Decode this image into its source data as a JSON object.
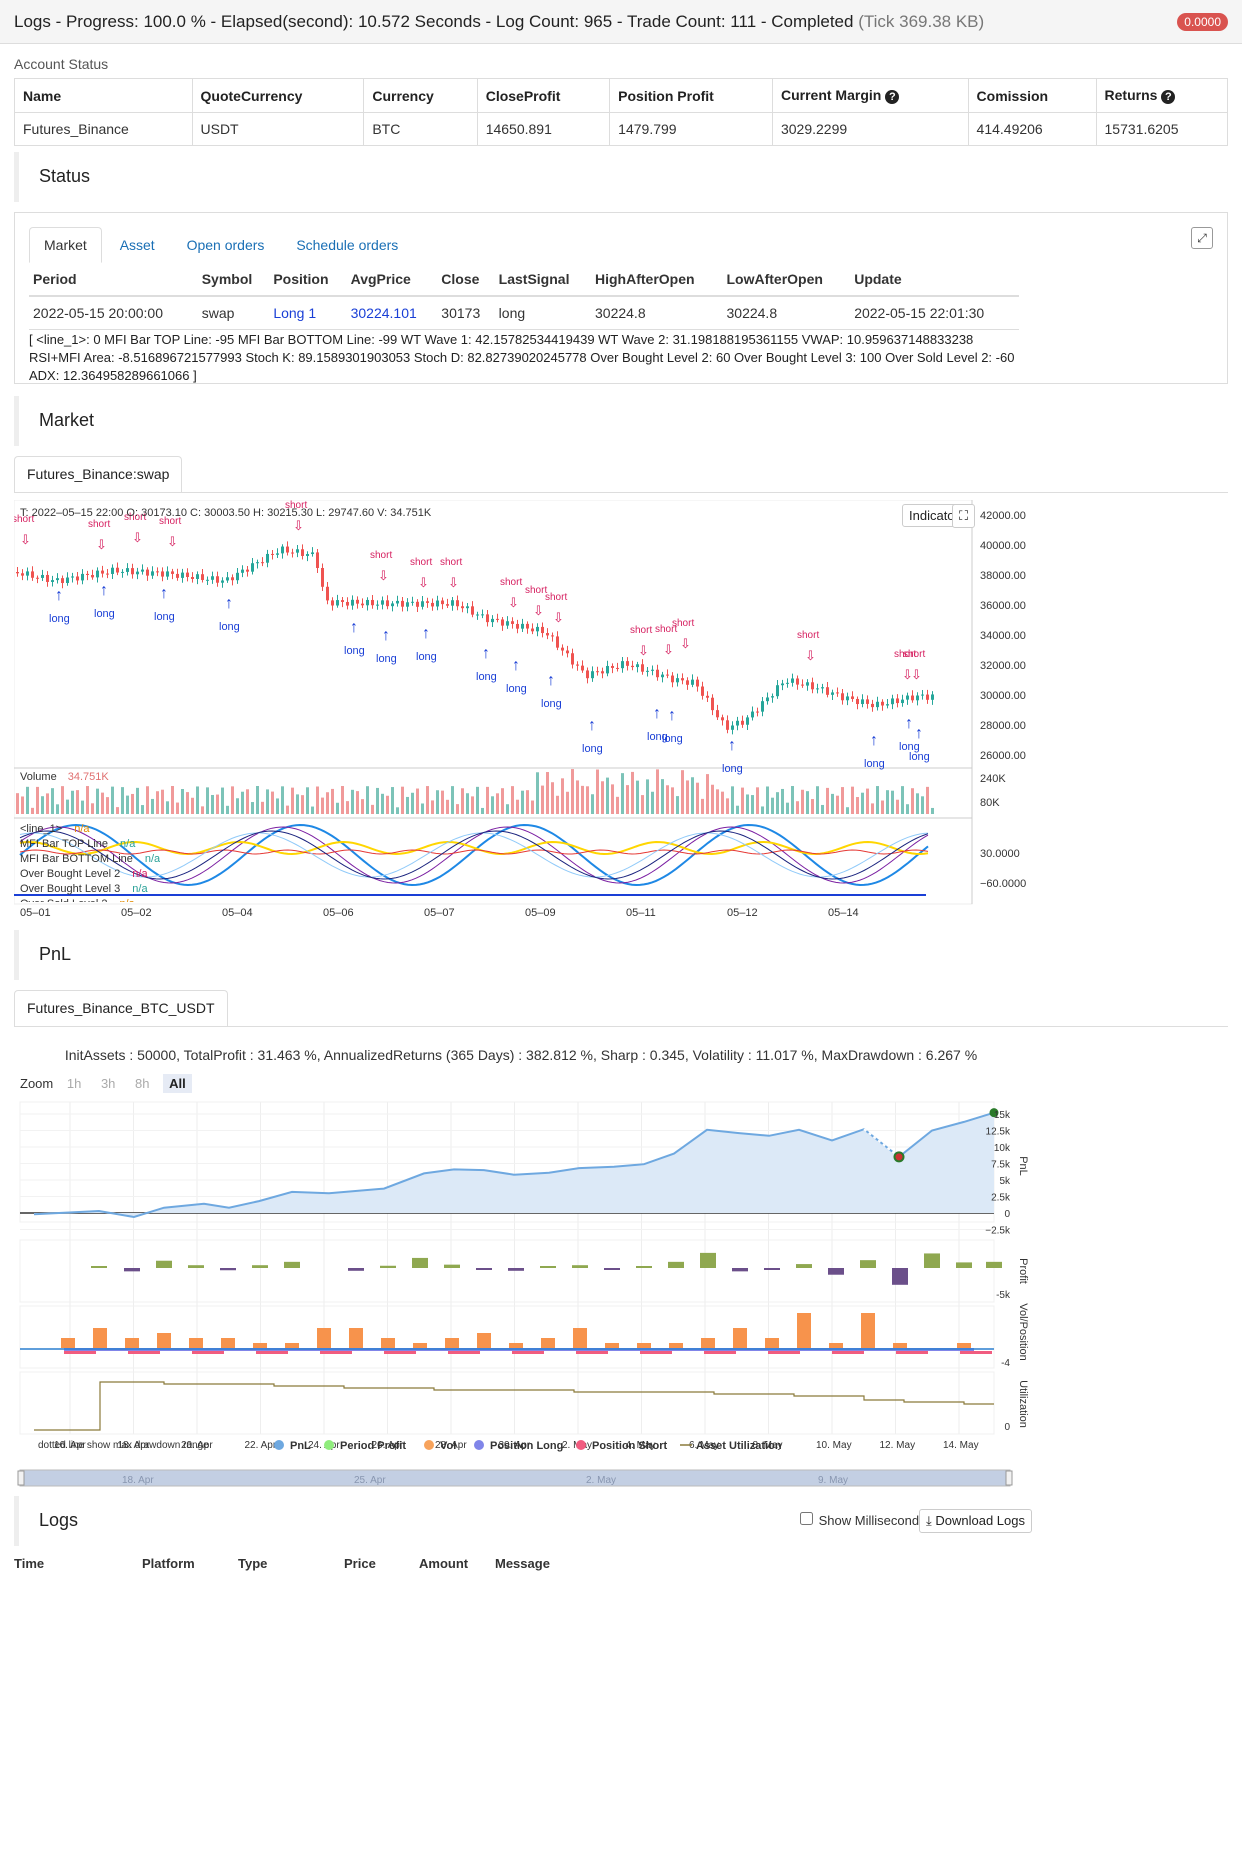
{
  "topbar": {
    "title": "Logs - Progress: 100.0 % - Elapsed(second): 10.572 Seconds - Log Count: 965 - Trade Count: 111 - Completed",
    "tick": "(Tick 369.38 KB)",
    "badge": "0.0000"
  },
  "account": {
    "label": "Account Status",
    "headers": [
      "Name",
      "QuoteCurrency",
      "Currency",
      "CloseProfit",
      "Position Profit",
      "Current Margin",
      "Comission",
      "Returns"
    ],
    "row": [
      "Futures_Binance",
      "USDT",
      "BTC",
      "14650.891",
      "1479.799",
      "3029.2299",
      "414.49206",
      "15731.6205"
    ]
  },
  "status": {
    "title": "Status",
    "tabs": [
      "Market",
      "Asset",
      "Open orders",
      "Schedule orders"
    ],
    "headers": [
      "Period",
      "Symbol",
      "Position",
      "AvgPrice",
      "Close",
      "LastSignal",
      "HighAfterOpen",
      "LowAfterOpen",
      "Update"
    ],
    "row": [
      "2022-05-15 20:00:00",
      "swap",
      "Long 1",
      "30224.101",
      "30173",
      "long",
      "30224.8",
      "30224.8",
      "2022-05-15 22:01:30"
    ],
    "vars": "[ <line_1>: 0 MFI Bar TOP Line: -95 MFI Bar BOTTOM Line: -99 WT Wave 1: 42.15782534419439 WT Wave 2: 31.198188195361155 VWAP: 10.959637148833238 RSI+MFI Area: -8.516896721577993 Stoch K: 89.1589301903053 Stoch D: 82.82739020245778 Over Bought Level 2: 60 Over Bought Level 3: 100 Over Sold Level 2: -60 ADX: 12.364958289661066 ]"
  },
  "market": {
    "title": "Market",
    "tab": "Futures_Binance:swap",
    "ohlc": "T: 2022–05–15 22:00    O: 30173.10    C: 30003.50    H: 30215.30    L: 29747.60    V: 34.751K",
    "indicator_btn": "Indicator",
    "price_ticks": [
      "42000.00",
      "40000.00",
      "38000.00",
      "36000.00",
      "34000.00",
      "32000.00",
      "30000.00",
      "28000.00",
      "26000.00"
    ],
    "volume_label": "Volume",
    "volume_value": "34.751K",
    "volume_ticks": [
      "240K",
      "80K"
    ],
    "legend": [
      {
        "name": "<line_1>",
        "value": "n/a",
        "color": "#e08a00"
      },
      {
        "name": "MFI Bar TOP Line",
        "value": "n/a",
        "color": "#2aa198"
      },
      {
        "name": "MFI Bar BOTTOM Line",
        "value": "n/a",
        "color": "#2aa198"
      },
      {
        "name": "Over Bought Level 2",
        "value": "n/a",
        "color": "#d62060"
      },
      {
        "name": "Over Bought Level 3",
        "value": "n/a",
        "color": "#2aa198"
      },
      {
        "name": "Over Sold Level 2",
        "value": "n/a",
        "color": "#e08a00"
      }
    ],
    "osc_ticks": [
      "30.0000",
      "−60.0000"
    ],
    "dates": [
      "05–01",
      "05–02",
      "05–04",
      "05–06",
      "05–07",
      "05–09",
      "05–11",
      "05–12",
      "05–14"
    ],
    "signal_long": "long",
    "signal_short": "short"
  },
  "pnl": {
    "title": "PnL",
    "tab": "Futures_Binance_BTC_USDT",
    "summary": "InitAssets : 50000, TotalProfit : 31.463 %, AnnualizedReturns (365 Days) : 382.812 %, Sharp : 0.345, Volatility : 11.017 %, MaxDrawdown : 6.267 %",
    "zoom_label": "Zoom",
    "zoom_options": [
      "1h",
      "3h",
      "8h",
      "All"
    ],
    "pnl_ticks": [
      "15k",
      "12.5k",
      "10k",
      "7.5k",
      "5k",
      "2.5k",
      "0",
      "−2.5k"
    ],
    "profit_ticks": [
      "-5k"
    ],
    "vol_ticks": [
      "-4"
    ],
    "util_ticks": [
      "0"
    ],
    "axis_titles": [
      "PnL",
      "Profit",
      "Vol/Position",
      "Utilization"
    ],
    "dates": [
      "16. Apr",
      "18. Apr",
      "20. Apr",
      "22. Apr",
      "24. Apr",
      "26. Apr",
      "28. Apr",
      "30. Apr",
      "2. May",
      "4. May",
      "6. May",
      "8. May",
      "10. May",
      "12. May",
      "14. May"
    ],
    "legend_note": "dotted line show max drawdown range",
    "legend": [
      {
        "name": "PnL",
        "color": "#6ea8e0"
      },
      {
        "name": "Period Profit",
        "color": "#90ed7d"
      },
      {
        "name": "Vol",
        "color": "#f7a35c"
      },
      {
        "name": "Position Long",
        "color": "#8085e9"
      },
      {
        "name": "Position Short",
        "color": "#f15c80"
      },
      {
        "name": "Asset Utilization",
        "color": "#8b7a3a"
      }
    ],
    "navigator_dates": [
      "18. Apr",
      "25. Apr",
      "2. May",
      "9. May"
    ],
    "colors": {
      "line": "#6ea8e0",
      "pos_bar": "#8fa850",
      "neg_bar": "#6b4f8a",
      "vol": "#f7934c",
      "long": "#8085e9",
      "short": "#f15c80",
      "util": "#8b7a3a"
    }
  },
  "logs": {
    "title": "Logs",
    "show_ms": "Show Millisecond",
    "download": "Download Logs",
    "headers": [
      "Time",
      "Platform",
      "Type",
      "Price",
      "Amount",
      "Message"
    ]
  }
}
